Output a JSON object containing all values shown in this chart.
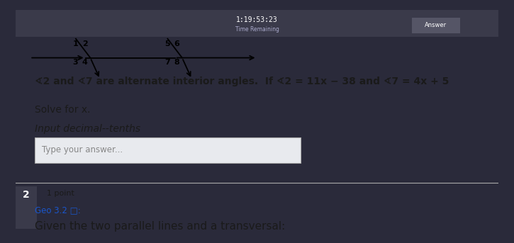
{
  "bg_outer": "#2a2a3a",
  "bg_inner": "#c8ccd4",
  "title_text": "1:19:53:23",
  "time_label": "Time Remaining",
  "question_text": "∢2 and ∢7 are alternate interior angles.  If ∢2 = 11x − 38 and ∢7 = 4x + 5",
  "solve_text": "Solve for x.",
  "input_text": "Input decimal--tenths",
  "placeholder_text": "Type your answer...",
  "question_num": "2",
  "points_text": "1 point",
  "geo_text": "Geo 3.2 □:",
  "bottom_text": "Given the two parallel lines and a transversal:",
  "answer_btn": "Answer",
  "input_box_color": "#e8eaee",
  "text_color": "#1a1a1a",
  "geo_link_color": "#1a56cc",
  "font_size_question": 10,
  "font_size_small": 8,
  "font_size_bottom": 11
}
